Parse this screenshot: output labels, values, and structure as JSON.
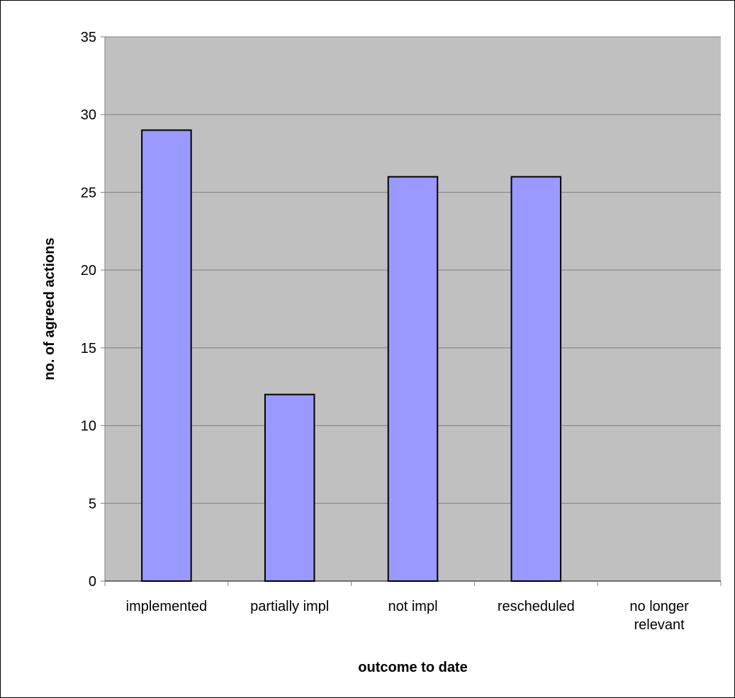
{
  "chart_data": {
    "type": "bar",
    "categories": [
      "implemented",
      "partially impl",
      "not impl",
      "rescheduled",
      "no longer relevant"
    ],
    "category_lines": [
      [
        "implemented"
      ],
      [
        "partially impl"
      ],
      [
        "not impl"
      ],
      [
        "rescheduled"
      ],
      [
        "no longer",
        "relevant"
      ]
    ],
    "values": [
      29,
      12,
      26,
      26,
      0
    ],
    "xlabel": "outcome to date",
    "ylabel": "no. of agreed actions",
    "ylim": [
      0,
      35
    ],
    "yticks": [
      0,
      5,
      10,
      15,
      20,
      25,
      30,
      35
    ],
    "grid": true,
    "legend": "none",
    "colors": {
      "plot_background": "#c0c0c0",
      "bar_fill": "#9999ff",
      "bar_stroke": "#000000",
      "gridline": "#808080",
      "axis": "#808080"
    }
  }
}
